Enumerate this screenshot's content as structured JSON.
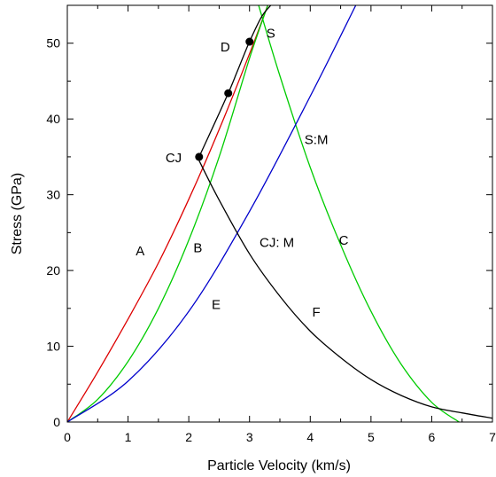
{
  "chart_data": {
    "type": "line",
    "xlabel": "Particle Velocity (km/s)",
    "ylabel": "Stress (GPa)",
    "xlim": [
      0,
      7
    ],
    "ylim": [
      0,
      55
    ],
    "xticks": [
      0,
      1,
      2,
      3,
      4,
      5,
      6,
      7
    ],
    "yticks": [
      0,
      10,
      20,
      30,
      40,
      50
    ],
    "grid": false,
    "series": [
      {
        "name": "A",
        "color": "#dd0000",
        "x": [
          0,
          0.5,
          1.0,
          1.5,
          2.0,
          2.5,
          3.0,
          3.3
        ],
        "y": [
          0,
          6.6,
          13.6,
          21.0,
          29.4,
          38.6,
          48.6,
          55.0
        ]
      },
      {
        "name": "B",
        "color": "#00cc00",
        "x": [
          0,
          0.5,
          1.0,
          1.5,
          2.0,
          2.5,
          3.0,
          3.3
        ],
        "y": [
          0,
          3.0,
          8.0,
          15.0,
          24.0,
          35.0,
          48.0,
          55.0
        ]
      },
      {
        "name": "C",
        "color": "#00cc00",
        "x": [
          3.15,
          3.5,
          4.0,
          4.5,
          5.0,
          5.5,
          6.0,
          6.45
        ],
        "y": [
          55.0,
          45.7,
          33.6,
          23.4,
          14.6,
          7.6,
          2.6,
          0.0
        ]
      },
      {
        "name": "D",
        "color": "#000000",
        "x": [
          2.17,
          2.4,
          2.65,
          2.8,
          3.0,
          3.2,
          3.35
        ],
        "y": [
          35.0,
          39.0,
          43.4,
          46.3,
          50.2,
          53.5,
          55.0
        ]
      },
      {
        "name": "E",
        "color": "#0000cc",
        "x": [
          0,
          1.0,
          2.0,
          3.0,
          4.0,
          4.75
        ],
        "y": [
          0,
          5.4,
          14.6,
          27.8,
          43.0,
          55.0
        ]
      },
      {
        "name": "F",
        "color": "#000000",
        "x": [
          2.17,
          2.5,
          3.0,
          3.5,
          4.0,
          4.5,
          5.0,
          5.5,
          6.0,
          6.5,
          7.0
        ],
        "y": [
          34.5,
          29.3,
          22.2,
          16.6,
          12.0,
          8.5,
          5.6,
          3.5,
          2.0,
          1.2,
          0.5
        ]
      }
    ],
    "points": [
      {
        "label": "CJ",
        "x": 2.17,
        "y": 35.0
      },
      {
        "label": "",
        "x": 2.65,
        "y": 43.4
      },
      {
        "label": "",
        "x": 3.0,
        "y": 50.2
      }
    ],
    "annotations": [
      {
        "text": "A",
        "x": 1.2,
        "y": 22.6
      },
      {
        "text": "B",
        "x": 2.15,
        "y": 23.0
      },
      {
        "text": "C",
        "x": 4.55,
        "y": 24.0
      },
      {
        "text": "D",
        "x": 2.6,
        "y": 49.5
      },
      {
        "text": "E",
        "x": 2.45,
        "y": 15.5
      },
      {
        "text": "F",
        "x": 4.1,
        "y": 14.5
      },
      {
        "text": "S",
        "x": 3.35,
        "y": 51.3
      },
      {
        "text": "S:M",
        "x": 4.1,
        "y": 37.3
      },
      {
        "text": "CJ: M",
        "x": 3.45,
        "y": 23.7
      },
      {
        "text": "CJ",
        "x": 1.75,
        "y": 34.9
      }
    ]
  }
}
